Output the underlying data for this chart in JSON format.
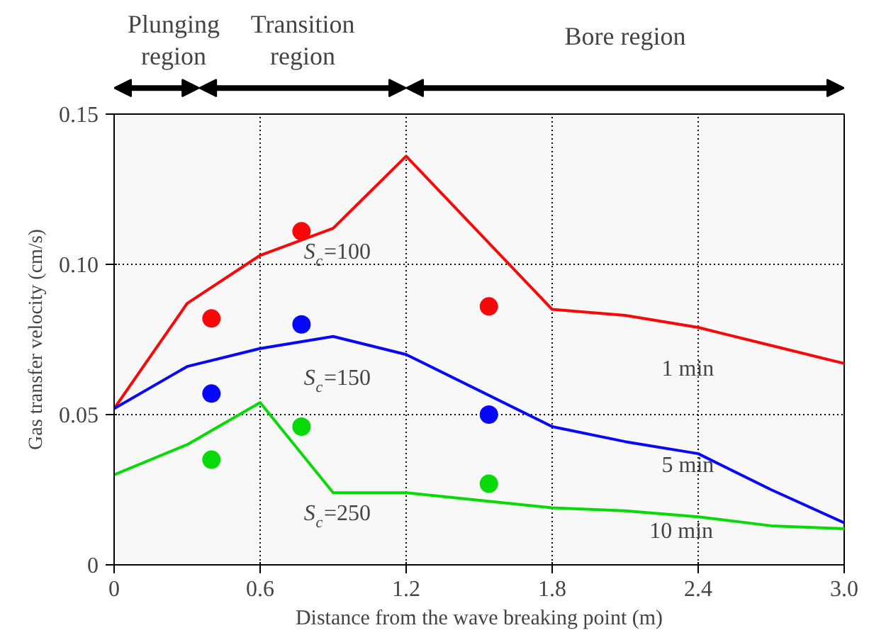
{
  "chart_data": {
    "type": "line",
    "xlabel": "Distance from the wave breaking point (m)",
    "ylabel": "Gas transfer velocity (cm/s)",
    "x": [
      0,
      0.3,
      0.6,
      0.9,
      1.2,
      1.8,
      2.1,
      2.4,
      2.7,
      3.0
    ],
    "series": [
      {
        "color": "#ff0000",
        "values": [
          0.052,
          0.087,
          0.103,
          0.112,
          0.136,
          0.085,
          0.083,
          0.079,
          0.073,
          0.067
        ]
      },
      {
        "color": "#0000ff",
        "values": [
          0.052,
          0.066,
          0.072,
          0.076,
          0.07,
          0.046,
          0.041,
          0.037,
          0.025,
          0.014
        ]
      },
      {
        "color": "#00e000",
        "values": [
          0.03,
          0.04,
          0.054,
          0.024,
          0.024,
          0.019,
          0.018,
          0.016,
          0.013,
          0.012
        ]
      },
      {
        "type": "scatter",
        "marker": "circle",
        "color": "#ff0000",
        "x": [
          0.4,
          0.77,
          1.54
        ],
        "values": [
          0.082,
          0.111,
          0.086
        ]
      },
      {
        "type": "scatter",
        "marker": "circle",
        "color": "#0000ff",
        "x": [
          0.4,
          0.77,
          1.54
        ],
        "values": [
          0.057,
          0.08,
          0.05
        ]
      },
      {
        "type": "scatter",
        "marker": "circle",
        "color": "#00e000",
        "x": [
          0.4,
          0.77,
          1.54
        ],
        "values": [
          0.035,
          0.046,
          0.027
        ]
      }
    ],
    "xlim": [
      0,
      3
    ],
    "ylim": [
      0,
      0.15
    ],
    "xticks": [
      0,
      0.6,
      1.2,
      1.8,
      2.4,
      {
        "value": 3,
        "label": "3.0"
      }
    ],
    "yticks": [
      0,
      0.05,
      {
        "value": 0.1,
        "label": "0.10"
      },
      0.15
    ],
    "grid": true,
    "bands": [
      {
        "axis": "x",
        "from": 0,
        "to": 0.35,
        "label": "Plunging region"
      },
      {
        "axis": "x",
        "from": 0.35,
        "to": 1.2,
        "label": "Transition region"
      },
      {
        "axis": "x",
        "from": 1.2,
        "to": 3.0,
        "label": "Bore region"
      }
    ],
    "annotations": [
      "S$_{c}$=100",
      "S$_{c}$=150",
      "S$_{c}$=250",
      "1 min",
      "5 min",
      "10 min"
    ]
  }
}
